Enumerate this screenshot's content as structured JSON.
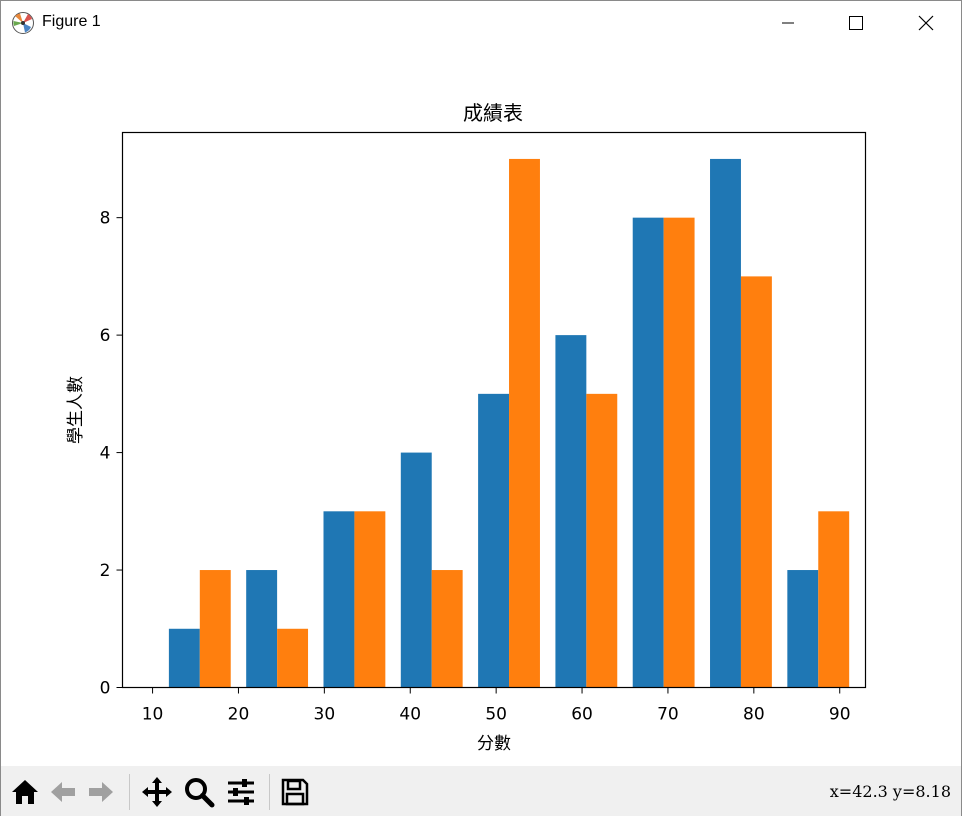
{
  "window": {
    "title": "Figure 1"
  },
  "toolbar": {
    "coords": "x=42.3 y=8.18",
    "buttons": [
      "home-icon",
      "back-arrow-icon",
      "forward-arrow-icon",
      "pan-icon",
      "zoom-icon",
      "configure-subplots-icon",
      "save-icon"
    ]
  },
  "colors": {
    "series1": "#1f77b4",
    "series2": "#ff7f0e"
  },
  "chart_data": {
    "type": "bar",
    "title": "成績表",
    "xlabel": "分數",
    "ylabel": "學生人數",
    "xlim": [
      6.5,
      93
    ],
    "ylim": [
      0,
      9.45
    ],
    "x_ticks": [
      10,
      20,
      30,
      40,
      50,
      60,
      70,
      80,
      90
    ],
    "y_ticks": [
      0,
      2,
      4,
      6,
      8
    ],
    "bin_edges": [
      11,
      20,
      29,
      38,
      47,
      56,
      65,
      74,
      83,
      92
    ],
    "grid": false,
    "legend": "none",
    "series": [
      {
        "color": "#1f77b4",
        "values": [
          1,
          2,
          3,
          4,
          5,
          6,
          8,
          9,
          2
        ]
      },
      {
        "color": "#ff7f0e",
        "values": [
          2,
          1,
          3,
          2,
          9,
          5,
          8,
          7,
          3
        ]
      }
    ]
  }
}
